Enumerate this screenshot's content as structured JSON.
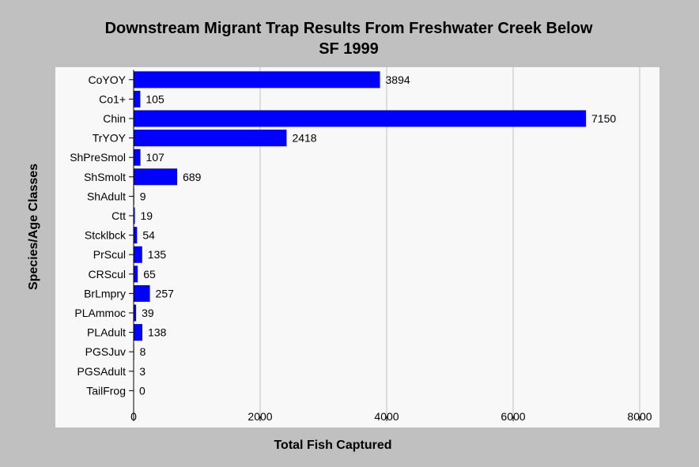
{
  "chart_data": {
    "type": "bar",
    "orientation": "horizontal",
    "title": [
      "Downstream Migrant Trap Results From Freshwater Creek Below",
      "SF 1999"
    ],
    "xlabel": "Total Fish Captured",
    "ylabel": "Species/Age Classes",
    "categories": [
      "CoYOY",
      "Co1+",
      "Chin",
      "TrYOY",
      "ShPreSmol",
      "ShSmolt",
      "ShAdult",
      "Ctt",
      "Stcklbck",
      "PrScul",
      "CRScul",
      "BrLmpry",
      "PLAmmoc",
      "PLAdult",
      "PGSJuv",
      "PGSAdult",
      "TailFrog"
    ],
    "values": [
      3894,
      105,
      7150,
      2418,
      107,
      689,
      9,
      19,
      54,
      135,
      65,
      257,
      39,
      138,
      8,
      3,
      0
    ],
    "xlim": [
      0,
      8000
    ],
    "xticks": [
      0,
      2000,
      4000,
      6000,
      8000
    ],
    "grid": "vertical",
    "legend": "none",
    "colors": {
      "background": "#c0c0c0",
      "plot_background": "#f8f8f8",
      "bar": "#0000ff",
      "gridline": "#c0c0c0",
      "text": "#000000"
    }
  }
}
